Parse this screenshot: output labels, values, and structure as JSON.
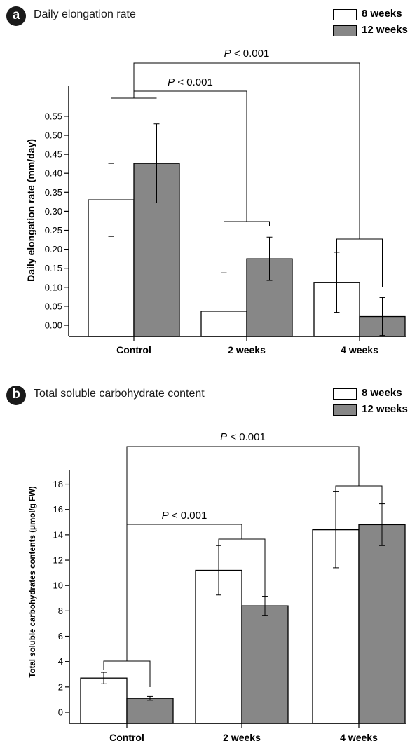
{
  "colors": {
    "series_8_weeks": "#ffffff",
    "series_12_weeks": "#878787",
    "outline": "#000000"
  },
  "panels": [
    {
      "letter": "a",
      "title": "Daily elongation rate"
    },
    {
      "letter": "b",
      "title": "Total soluble carbohydrate content"
    }
  ],
  "chart_data": [
    {
      "type": "bar",
      "title": "Daily elongation rate",
      "xlabel": "",
      "ylabel": "Daily elongation rate (mm/day)",
      "categories": [
        "Control",
        "2 weeks",
        "4 weeks"
      ],
      "ylim": [
        0,
        0.55
      ],
      "yticks": [
        "0.00",
        "0.05",
        "0.10",
        "0.15",
        "0.20",
        "0.25",
        "0.30",
        "0.35",
        "0.40",
        "0.45",
        "0.50",
        "0.55"
      ],
      "series": [
        {
          "name": "8 weeks",
          "values": [
            0.33,
            0.037,
            0.113
          ],
          "errors": [
            0.096,
            0.101,
            0.079
          ]
        },
        {
          "name": "12 weeks",
          "values": [
            0.426,
            0.175,
            0.023
          ],
          "errors": [
            0.104,
            0.057,
            0.05
          ]
        }
      ],
      "annotations": [
        {
          "text": "P < 0.001",
          "between": [
            "Control",
            "4 weeks"
          ]
        },
        {
          "text": "P < 0.001",
          "between": [
            "Control",
            "2 weeks"
          ]
        }
      ],
      "legend": "top-right",
      "grid": false
    },
    {
      "type": "bar",
      "title": "Total soluble carbohydrate content",
      "xlabel": "",
      "ylabel": "Total soluble carbohydrates contents (μmol/g FW)",
      "categories": [
        "Control",
        "2 weeks",
        "4 weeks"
      ],
      "ylim": [
        -0.8,
        19
      ],
      "yticks": [
        "0",
        "2",
        "4",
        "6",
        "8",
        "10",
        "12",
        "14",
        "16",
        "18"
      ],
      "series": [
        {
          "name": "8 weeks",
          "values": [
            2.7,
            11.2,
            14.4
          ],
          "errors": [
            0.45,
            1.95,
            3.0
          ]
        },
        {
          "name": "12 weeks",
          "values": [
            1.1,
            8.4,
            14.8
          ],
          "errors": [
            0.15,
            0.75,
            1.65
          ]
        }
      ],
      "annotations": [
        {
          "text": "P < 0.001",
          "between": [
            "Control",
            "4 weeks"
          ]
        },
        {
          "text": "P < 0.001",
          "between": [
            "Control",
            "2 weeks"
          ]
        }
      ],
      "legend": "top-right",
      "grid": false
    }
  ]
}
